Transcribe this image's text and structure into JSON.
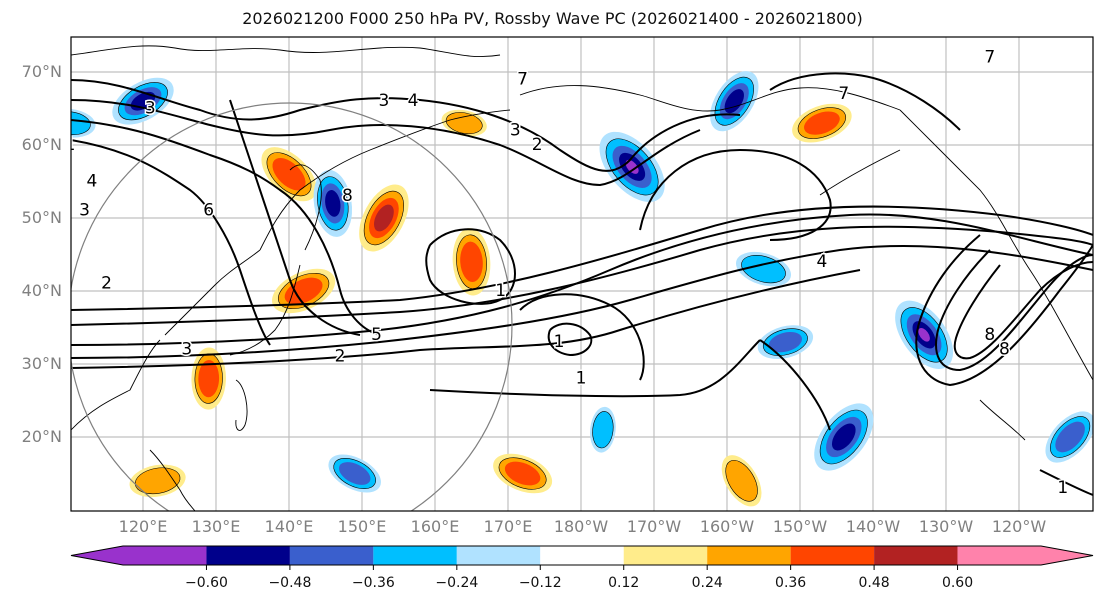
{
  "figure": {
    "title": "2026021200 F000 250 hPa PV, Rossby Wave PC (2026021400 - 2026021800)",
    "lat_labels": [
      "70°N",
      "60°N",
      "50°N",
      "40°N",
      "30°N",
      "20°N"
    ],
    "lon_labels": [
      "120°E",
      "130°E",
      "140°E",
      "150°E",
      "160°E",
      "170°E",
      "180°W",
      "170°W",
      "160°W",
      "150°W",
      "140°W",
      "130°W",
      "120°W"
    ]
  },
  "colorbar": {
    "tick_labels": [
      "−0.60",
      "−0.48",
      "−0.36",
      "−0.24",
      "−0.12",
      "0.12",
      "0.24",
      "0.36",
      "0.48",
      "0.60"
    ],
    "levels": [
      -0.6,
      -0.48,
      -0.36,
      -0.24,
      -0.12,
      0.12,
      0.24,
      0.36,
      0.48,
      0.6
    ],
    "colors": [
      "#9932CC",
      "#00008B",
      "#3A5FCD",
      "#00BFFF",
      "#B0E2FF",
      "#FFFFFF",
      "#FFEC8B",
      "#FFA500",
      "#FF4500",
      "#B22222",
      "#FF82AB"
    ],
    "extend": "both"
  },
  "chart_data": {
    "type": "heatmap",
    "title": "2026021200 F000 250 hPa PV, Rossby Wave PC (2026021400 - 2026021800)",
    "field_filled": "Rossby Wave PC",
    "field_contour": "250 hPa PV (PVU)",
    "lon_range": [
      110,
      250
    ],
    "lat_range": [
      10,
      75
    ],
    "grid": true,
    "xlabel": "",
    "ylabel": "",
    "x_ticks": [
      "120°E",
      "130°E",
      "140°E",
      "150°E",
      "160°E",
      "170°E",
      "180°W",
      "170°W",
      "160°W",
      "150°W",
      "140°W",
      "130°W",
      "120°W"
    ],
    "y_ticks": [
      "70°N",
      "60°N",
      "50°N",
      "40°N",
      "30°N",
      "20°N"
    ],
    "contour_labels": [
      {
        "value": "1",
        "lon": 110,
        "lat": 60
      },
      {
        "value": "3",
        "lon": 121,
        "lat": 65
      },
      {
        "value": "4",
        "lon": 113,
        "lat": 55
      },
      {
        "value": "3",
        "lon": 112,
        "lat": 51
      },
      {
        "value": "2",
        "lon": 115,
        "lat": 41
      },
      {
        "value": "3",
        "lon": 126,
        "lat": 32
      },
      {
        "value": "6",
        "lon": 129,
        "lat": 51
      },
      {
        "value": "8",
        "lon": 148,
        "lat": 53
      },
      {
        "value": "4",
        "lon": 157,
        "lat": 66
      },
      {
        "value": "3",
        "lon": 153,
        "lat": 66
      },
      {
        "value": "7",
        "lon": 172,
        "lat": 69
      },
      {
        "value": "3",
        "lon": 171,
        "lat": 62
      },
      {
        "value": "2",
        "lon": 174,
        "lat": 60
      },
      {
        "value": "1",
        "lon": 169,
        "lat": 40
      },
      {
        "value": "2",
        "lon": 147,
        "lat": 31
      },
      {
        "value": "5",
        "lon": 152,
        "lat": 34
      },
      {
        "value": "1",
        "lon": 177,
        "lat": 33
      },
      {
        "value": "1",
        "lon": 180,
        "lat": 28
      },
      {
        "value": "7",
        "lon": 216,
        "lat": 67
      },
      {
        "value": "7",
        "lon": 236,
        "lat": 72
      },
      {
        "value": "4",
        "lon": 213,
        "lat": 44
      },
      {
        "value": "8",
        "lon": 236,
        "lat": 34
      },
      {
        "value": "8",
        "lon": 238,
        "lat": 32
      },
      {
        "value": "1",
        "lon": 246,
        "lat": 13
      }
    ],
    "anomalies": [
      {
        "sign": "negative",
        "peak": -0.48,
        "lon": 120,
        "lat": 66
      },
      {
        "sign": "negative",
        "peak": -0.24,
        "lon": 110,
        "lat": 63
      },
      {
        "sign": "positive",
        "peak": 0.36,
        "lon": 140,
        "lat": 56
      },
      {
        "sign": "negative",
        "peak": -0.48,
        "lon": 146,
        "lat": 52
      },
      {
        "sign": "positive",
        "peak": 0.48,
        "lon": 153,
        "lat": 50
      },
      {
        "sign": "positive",
        "peak": 0.36,
        "lon": 142,
        "lat": 40
      },
      {
        "sign": "positive",
        "peak": 0.24,
        "lon": 164,
        "lat": 63
      },
      {
        "sign": "negative",
        "peak": -0.6,
        "lon": 187,
        "lat": 57
      },
      {
        "sign": "positive",
        "peak": 0.36,
        "lon": 165,
        "lat": 44
      },
      {
        "sign": "negative",
        "peak": -0.48,
        "lon": 201,
        "lat": 66
      },
      {
        "sign": "positive",
        "peak": 0.36,
        "lon": 213,
        "lat": 63
      },
      {
        "sign": "negative",
        "peak": -0.24,
        "lon": 205,
        "lat": 43
      },
      {
        "sign": "negative",
        "peak": -0.6,
        "lon": 227,
        "lat": 34
      },
      {
        "sign": "positive",
        "peak": 0.36,
        "lon": 129,
        "lat": 28
      },
      {
        "sign": "negative",
        "peak": -0.48,
        "lon": 216,
        "lat": 20
      },
      {
        "sign": "negative",
        "peak": -0.36,
        "lon": 208,
        "lat": 33
      },
      {
        "sign": "positive",
        "peak": 0.36,
        "lon": 172,
        "lat": 15
      },
      {
        "sign": "positive",
        "peak": 0.24,
        "lon": 202,
        "lat": 14
      },
      {
        "sign": "negative",
        "peak": -0.24,
        "lon": 183,
        "lat": 21
      },
      {
        "sign": "negative",
        "peak": -0.36,
        "lon": 247,
        "lat": 20
      },
      {
        "sign": "positive",
        "peak": 0.24,
        "lon": 122,
        "lat": 14
      },
      {
        "sign": "negative",
        "peak": -0.36,
        "lon": 149,
        "lat": 15
      }
    ]
  }
}
